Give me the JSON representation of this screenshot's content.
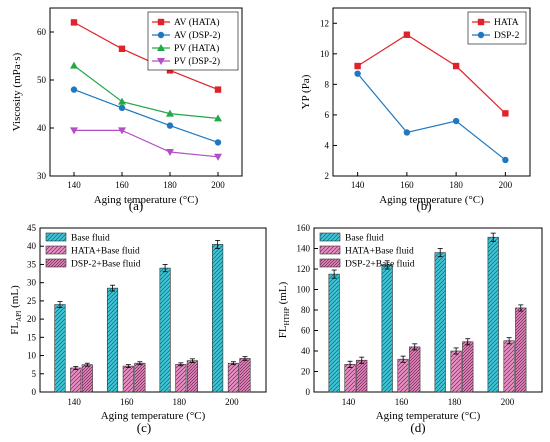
{
  "figure": {
    "panels": [
      "(a)",
      "(b)",
      "(c)",
      "(d)"
    ]
  },
  "chart_data": [
    {
      "type": "line",
      "panel": "(a)",
      "xlabel": "Aging temperature (°C)",
      "ylabel": "Viscosity (mPa·s)",
      "x": [
        140,
        160,
        180,
        200
      ],
      "xlim": [
        130,
        210
      ],
      "ylim": [
        30,
        65
      ],
      "xticks": [
        140,
        160,
        180,
        200
      ],
      "yticks": [
        30,
        40,
        50,
        60
      ],
      "legend_position": "top-right",
      "series": [
        {
          "name": "AV (HATA)",
          "values": [
            62,
            56.5,
            52,
            48
          ],
          "color": "#e0232a",
          "marker": "square"
        },
        {
          "name": "AV (DSP-2)",
          "values": [
            48,
            44.2,
            40.5,
            37
          ],
          "color": "#1f78c0",
          "marker": "circle"
        },
        {
          "name": "PV (HATA)",
          "values": [
            53,
            45.5,
            43,
            42
          ],
          "color": "#25a84a",
          "marker": "triangle-up"
        },
        {
          "name": "PV (DSP-2)",
          "values": [
            39.5,
            39.5,
            35,
            34
          ],
          "color": "#b24fc5",
          "marker": "triangle-down"
        }
      ]
    },
    {
      "type": "line",
      "panel": "(b)",
      "xlabel": "Aging temperature (°C)",
      "ylabel": "YP (Pa)",
      "x": [
        140,
        160,
        180,
        200
      ],
      "xlim": [
        130,
        210
      ],
      "ylim": [
        2,
        13
      ],
      "xticks": [
        140,
        160,
        180,
        200
      ],
      "yticks": [
        2,
        4,
        6,
        8,
        10,
        12
      ],
      "legend_position": "top-right",
      "series": [
        {
          "name": "HATA",
          "values": [
            9.2,
            11.25,
            9.2,
            6.1
          ],
          "color": "#e0232a",
          "marker": "square"
        },
        {
          "name": "DSP-2",
          "values": [
            8.7,
            4.85,
            5.6,
            3.05
          ],
          "color": "#1f78c0",
          "marker": "circle"
        }
      ]
    },
    {
      "type": "bar",
      "panel": "(c)",
      "xlabel": "Aging temperature (°C)",
      "ylabel": "FL",
      "ylabel_subscript": "API",
      "ylabel_unit": " (mL)",
      "categories": [
        "140",
        "160",
        "180",
        "200"
      ],
      "ylim": [
        0,
        45
      ],
      "yticks": [
        0,
        5,
        10,
        15,
        20,
        25,
        30,
        35,
        40,
        45
      ],
      "legend_position": "top-left",
      "series": [
        {
          "name": "Base fluid",
          "values": [
            24,
            28.5,
            34,
            40.5
          ],
          "errors": [
            0.8,
            0.8,
            1.0,
            1.1
          ],
          "color": "#3fc6d6",
          "hatch": "diagonal"
        },
        {
          "name": "HATA+Base fluid",
          "values": [
            6.6,
            7.1,
            7.6,
            7.9
          ],
          "errors": [
            0.4,
            0.4,
            0.4,
            0.4
          ],
          "color": "#e07ab6",
          "hatch": "diagonal"
        },
        {
          "name": "DSP-2+Base fluid",
          "values": [
            7.5,
            7.9,
            8.6,
            9.2
          ],
          "errors": [
            0.4,
            0.4,
            0.5,
            0.5
          ],
          "color": "#e07ab6",
          "hatch": "diagonal-dense"
        }
      ]
    },
    {
      "type": "bar",
      "panel": "(d)",
      "xlabel": "Aging temperature (°C)",
      "ylabel": "FL",
      "ylabel_subscript": "HTHP",
      "ylabel_unit": " (mL)",
      "categories": [
        "140",
        "160",
        "180",
        "200"
      ],
      "ylim": [
        0,
        160
      ],
      "yticks": [
        0,
        20,
        40,
        60,
        80,
        100,
        120,
        140,
        160
      ],
      "legend_position": "top-left",
      "series": [
        {
          "name": "Base fluid",
          "values": [
            115,
            124,
            136,
            151
          ],
          "errors": [
            4,
            4,
            4,
            4
          ],
          "color": "#3fc6d6",
          "hatch": "diagonal"
        },
        {
          "name": "HATA+Base fluid",
          "values": [
            27,
            32,
            40,
            50
          ],
          "errors": [
            3,
            3,
            3,
            3
          ],
          "color": "#e07ab6",
          "hatch": "diagonal"
        },
        {
          "name": "DSP-2+Base fluid",
          "values": [
            31,
            44,
            49,
            82
          ],
          "errors": [
            3,
            3,
            3,
            3
          ],
          "color": "#e07ab6",
          "hatch": "diagonal-dense"
        }
      ]
    }
  ]
}
